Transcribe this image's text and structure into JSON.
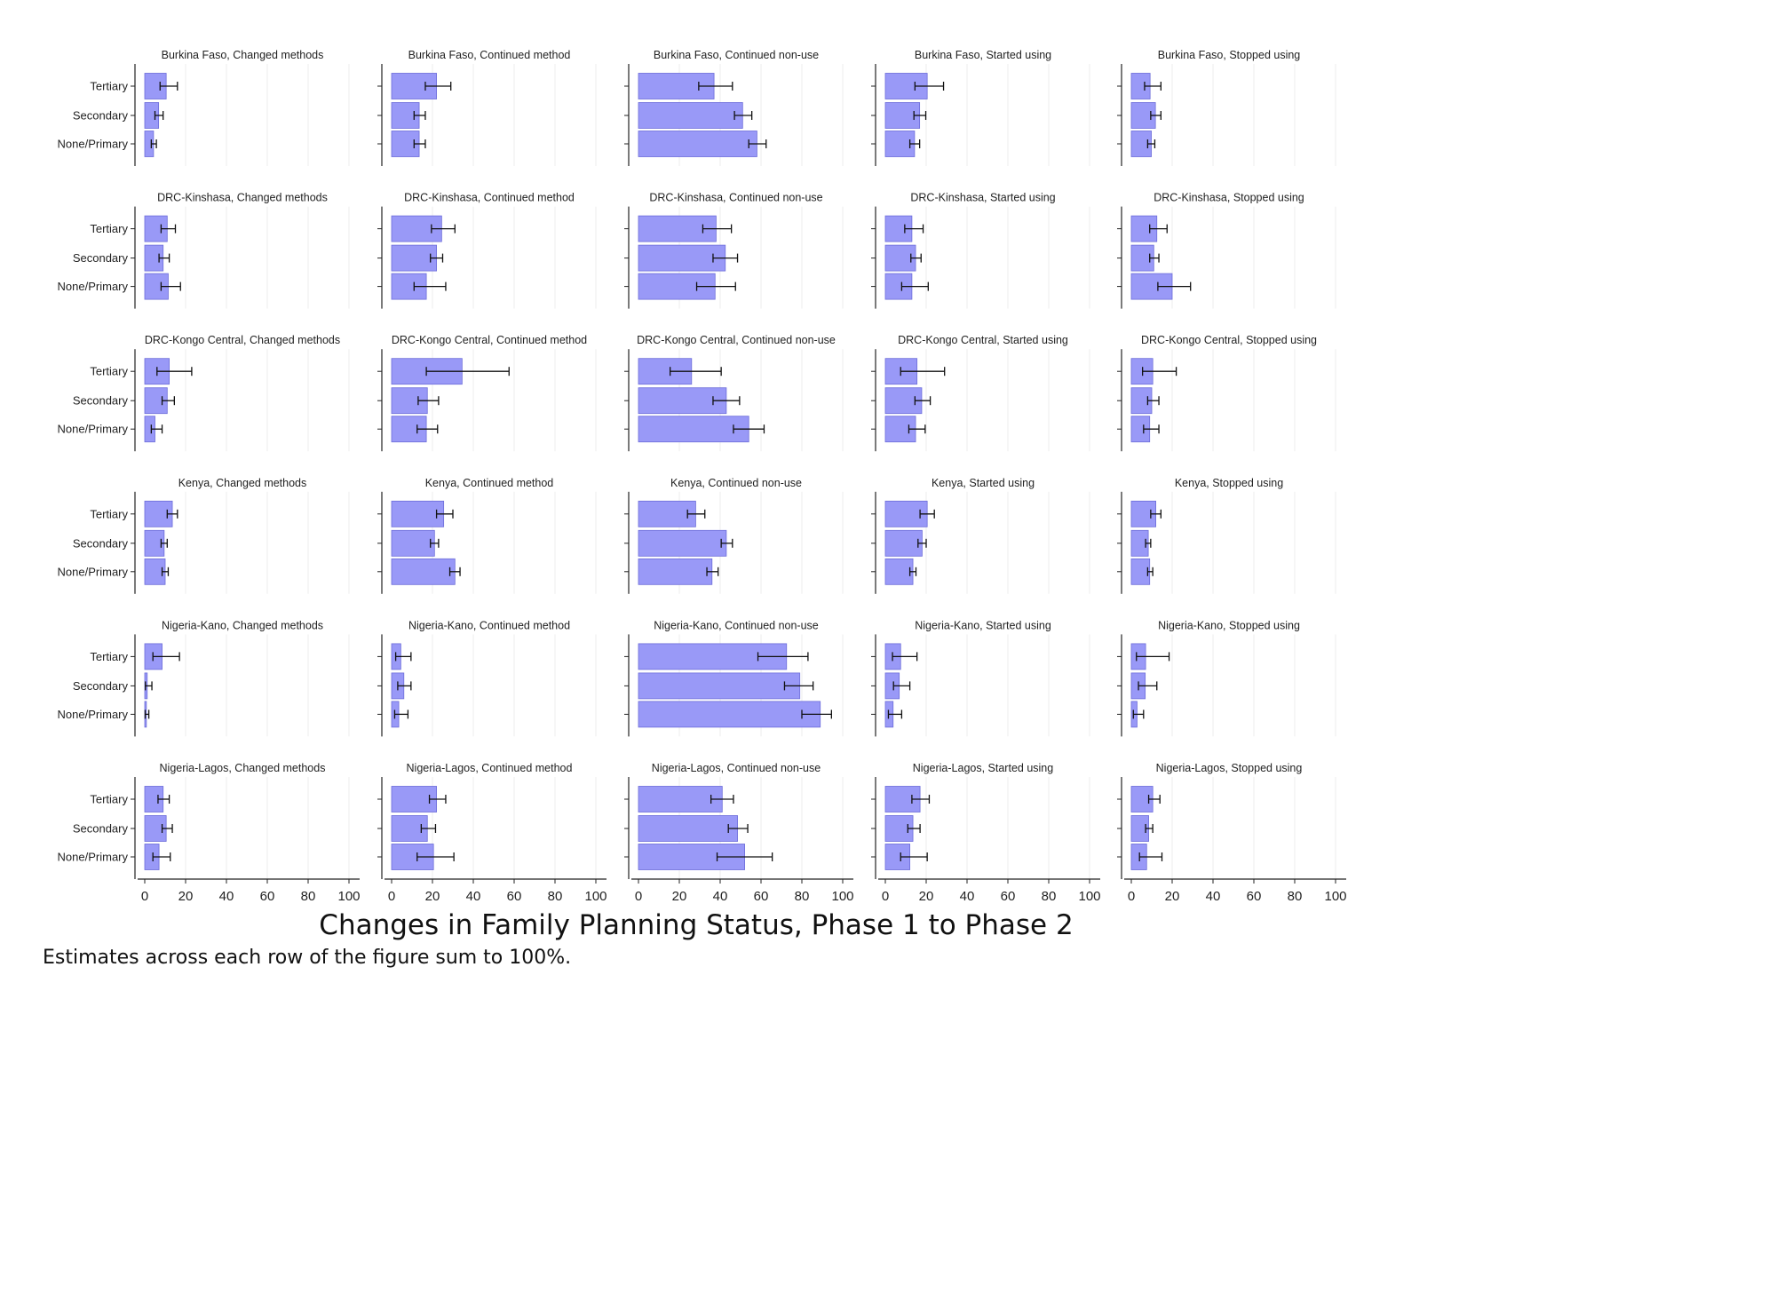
{
  "x_axis_title": "Changes in Family Planning Status, Phase 1 to Phase 2",
  "note": "Estimates across each row of the figure sum to 100%.",
  "colors": {
    "bar": "#9999f7",
    "bar_edge": "#6c6cd9",
    "error_bar": "#111111",
    "grid": "#eeeeee",
    "axis": "#222222"
  },
  "chart_data": {
    "type": "bar",
    "orientation": "horizontal",
    "error_bars": true,
    "categories": [
      "Tertiary",
      "Secondary",
      "None/Primary"
    ],
    "xlim": [
      0,
      100
    ],
    "xticks": [
      0,
      20,
      40,
      60,
      80,
      100
    ],
    "grid": true,
    "rows": [
      "Burkina Faso",
      "DRC-Kinshasa",
      "DRC-Kongo Central",
      "Kenya",
      "Nigeria-Kano",
      "Nigeria-Lagos"
    ],
    "columns": [
      "Changed methods",
      "Continued method",
      "Continued non-use",
      "Started using",
      "Stopped using"
    ],
    "panels": [
      {
        "title": "Burkina Faso, Changed methods",
        "values": [
          10.5,
          6.8,
          4.3
        ],
        "ci": [
          [
            7.5,
            16
          ],
          [
            5,
            9
          ],
          [
            3.2,
            5.7
          ]
        ]
      },
      {
        "title": "Burkina Faso, Continued method",
        "values": [
          22,
          13.5,
          13.5
        ],
        "ci": [
          [
            16.5,
            29
          ],
          [
            11,
            16.5
          ],
          [
            11,
            16.5
          ]
        ]
      },
      {
        "title": "Burkina Faso, Continued non-use",
        "values": [
          37,
          51,
          58
        ],
        "ci": [
          [
            29.5,
            46
          ],
          [
            47,
            55.5
          ],
          [
            54,
            62.5
          ]
        ]
      },
      {
        "title": "Burkina Faso, Started using",
        "values": [
          20.5,
          16.8,
          14.3
        ],
        "ci": [
          [
            14.5,
            28.5
          ],
          [
            14,
            19.8
          ],
          [
            12,
            16.8
          ]
        ]
      },
      {
        "title": "Burkina Faso, Stopped using",
        "values": [
          9.2,
          11.8,
          9.8
        ],
        "ci": [
          [
            6.5,
            14.5
          ],
          [
            9.5,
            14.5
          ],
          [
            8,
            11.5
          ]
        ]
      },
      {
        "title": "DRC-Kinshasa, Changed methods",
        "values": [
          11,
          9,
          11.5
        ],
        "ci": [
          [
            8,
            15
          ],
          [
            7,
            12
          ],
          [
            8,
            17.5
          ]
        ]
      },
      {
        "title": "DRC-Kinshasa, Continued method",
        "values": [
          24.5,
          22,
          17
        ],
        "ci": [
          [
            19.5,
            31
          ],
          [
            19,
            25
          ],
          [
            11,
            26.5
          ]
        ]
      },
      {
        "title": "DRC-Kinshasa, Continued non-use",
        "values": [
          38,
          42.5,
          37.5
        ],
        "ci": [
          [
            31.5,
            45.5
          ],
          [
            36.5,
            48.5
          ],
          [
            28.5,
            47.5
          ]
        ]
      },
      {
        "title": "DRC-Kinshasa, Started using",
        "values": [
          13,
          14.8,
          13
        ],
        "ci": [
          [
            9.5,
            18.5
          ],
          [
            12.5,
            17.5
          ],
          [
            8,
            21
          ]
        ]
      },
      {
        "title": "DRC-Kinshasa, Stopped using",
        "values": [
          12.5,
          11,
          20
        ],
        "ci": [
          [
            9,
            17.5
          ],
          [
            9,
            13.5
          ],
          [
            13,
            29
          ]
        ]
      }
    ],
    "panels_more": [
      {
        "title": "DRC-Kongo Central, Changed methods",
        "values": [
          12,
          11,
          5
        ],
        "ci": [
          [
            6,
            23
          ],
          [
            8.5,
            14.5
          ],
          [
            3.2,
            8.5
          ]
        ]
      },
      {
        "title": "DRC-Kongo Central, Continued method",
        "values": [
          34.5,
          17.5,
          17
        ],
        "ci": [
          [
            17,
            57.5
          ],
          [
            13,
            23
          ],
          [
            12.5,
            22.5
          ]
        ]
      },
      {
        "title": "DRC-Kongo Central, Continued non-use",
        "values": [
          26,
          43,
          54
        ],
        "ci": [
          [
            15.5,
            40.5
          ],
          [
            36.5,
            49.5
          ],
          [
            46.5,
            61.5
          ]
        ]
      },
      {
        "title": "DRC-Kongo Central, Started using",
        "values": [
          15.5,
          17.8,
          14.8
        ],
        "ci": [
          [
            7.5,
            29
          ],
          [
            14.5,
            22
          ],
          [
            11.5,
            19.5
          ]
        ]
      },
      {
        "title": "DRC-Kongo Central, Stopped using",
        "values": [
          10.5,
          10,
          9
        ],
        "ci": [
          [
            5.5,
            22
          ],
          [
            8,
            13.5
          ],
          [
            6,
            13.5
          ]
        ]
      },
      {
        "title": "Kenya, Changed methods",
        "values": [
          13.5,
          9.5,
          10
        ],
        "ci": [
          [
            11,
            16
          ],
          [
            8,
            11
          ],
          [
            8.5,
            11.5
          ]
        ]
      },
      {
        "title": "Kenya, Continued method",
        "values": [
          25.5,
          21,
          31
        ],
        "ci": [
          [
            22,
            30
          ],
          [
            19,
            23
          ],
          [
            28.5,
            33.5
          ]
        ]
      },
      {
        "title": "Kenya, Continued non-use",
        "values": [
          28,
          43,
          36
        ],
        "ci": [
          [
            24,
            32.5
          ],
          [
            40.5,
            46
          ],
          [
            33.5,
            39
          ]
        ]
      },
      {
        "title": "Kenya, Started using",
        "values": [
          20.5,
          18,
          13.5
        ],
        "ci": [
          [
            17,
            24
          ],
          [
            16,
            20
          ],
          [
            12,
            15
          ]
        ]
      },
      {
        "title": "Kenya, Stopped using",
        "values": [
          12,
          8.3,
          9
        ],
        "ci": [
          [
            9.5,
            14.5
          ],
          [
            7,
            9.5
          ],
          [
            8,
            10.5
          ]
        ]
      },
      {
        "title": "Nigeria-Kano, Changed methods",
        "values": [
          8.5,
          1.2,
          0.8
        ],
        "ci": [
          [
            4,
            17
          ],
          [
            0.3,
            3.5
          ],
          [
            0.2,
            2
          ]
        ]
      },
      {
        "title": "Nigeria-Kano, Continued method",
        "values": [
          4.5,
          6,
          3.5
        ],
        "ci": [
          [
            2,
            9.5
          ],
          [
            3,
            9.5
          ],
          [
            1.5,
            8
          ]
        ]
      },
      {
        "title": "Nigeria-Kano, Continued non-use",
        "values": [
          72.5,
          79,
          89
        ],
        "ci": [
          [
            58.5,
            83
          ],
          [
            71.5,
            85.5
          ],
          [
            80,
            94.5
          ]
        ]
      },
      {
        "title": "Nigeria-Kano, Started using",
        "values": [
          7.5,
          6.8,
          3.8
        ],
        "ci": [
          [
            3.5,
            15.5
          ],
          [
            4,
            12
          ],
          [
            1.5,
            8
          ]
        ]
      },
      {
        "title": "Nigeria-Kano, Stopped using",
        "values": [
          7,
          6.8,
          2.8
        ],
        "ci": [
          [
            2.5,
            18.5
          ],
          [
            3.5,
            12.5
          ],
          [
            1,
            6
          ]
        ]
      },
      {
        "title": "Nigeria-Lagos, Changed methods",
        "values": [
          9,
          10.5,
          7
        ],
        "ci": [
          [
            6.5,
            12
          ],
          [
            8.5,
            13.5
          ],
          [
            4,
            12.5
          ]
        ]
      },
      {
        "title": "Nigeria-Lagos, Continued method",
        "values": [
          22,
          17.5,
          20.5
        ],
        "ci": [
          [
            18.5,
            26.5
          ],
          [
            14.5,
            21.5
          ],
          [
            12.5,
            30.5
          ]
        ]
      },
      {
        "title": "Nigeria-Lagos, Continued non-use",
        "values": [
          41,
          48.5,
          52
        ],
        "ci": [
          [
            35.5,
            46.5
          ],
          [
            44,
            53.5
          ],
          [
            38.5,
            65.5
          ]
        ]
      },
      {
        "title": "Nigeria-Lagos, Started using",
        "values": [
          17,
          13.5,
          12
        ],
        "ci": [
          [
            13,
            21.5
          ],
          [
            11,
            17
          ],
          [
            7.5,
            20.5
          ]
        ]
      },
      {
        "title": "Nigeria-Lagos, Stopped using",
        "values": [
          10.5,
          8.5,
          7.5
        ],
        "ci": [
          [
            8.5,
            14
          ],
          [
            7,
            10.5
          ],
          [
            4,
            15
          ]
        ]
      }
    ]
  }
}
